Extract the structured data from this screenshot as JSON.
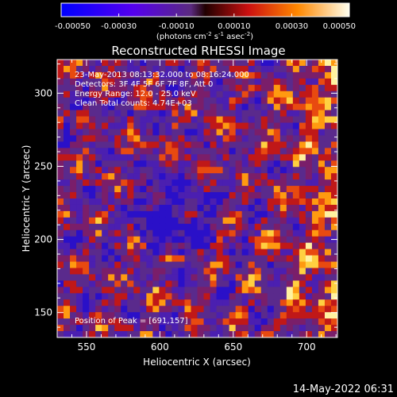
{
  "chart_data": {
    "type": "heatmap",
    "title": "Reconstructed RHESSI Image",
    "xlabel": "Heliocentric X (arcsec)",
    "ylabel": "Heliocentric Y (arcsec)",
    "xlim": [
      530,
      721
    ],
    "ylim": [
      133,
      323
    ],
    "x_ticks": [
      550,
      600,
      650,
      700
    ],
    "y_ticks": [
      150,
      200,
      250,
      300
    ],
    "colorbar": {
      "range": [
        -0.0005,
        0.0005
      ],
      "tick_labels": [
        "-0.00050",
        "-0.00030",
        "-0.00010",
        "0.00010",
        "0.00030",
        "0.00050"
      ],
      "tick_values": [
        -0.0005,
        -0.0003,
        -0.0001,
        0.0001,
        0.0003,
        0.0005
      ],
      "units_label": "(photons cm",
      "units_exp1": "-2",
      "units_mid": " s",
      "units_exp2": "-1",
      "units_mid2": " asec",
      "units_exp3": "-2",
      "units_end": ")"
    },
    "annotations": [
      "23-May-2013 08:13:32.000 to 08:16:24.000",
      "Detectors: 3F 4F 5F 6F 7F 8F, Att 0",
      "Energy Range: 12.0 - 25.0 keV",
      "Clean    Total counts: 4.74E+03"
    ],
    "peak_label": "Position of Peak = [691,157]",
    "peak": [
      691,
      157
    ],
    "grid": false
  },
  "timestamp": "14-May-2022 06:31"
}
